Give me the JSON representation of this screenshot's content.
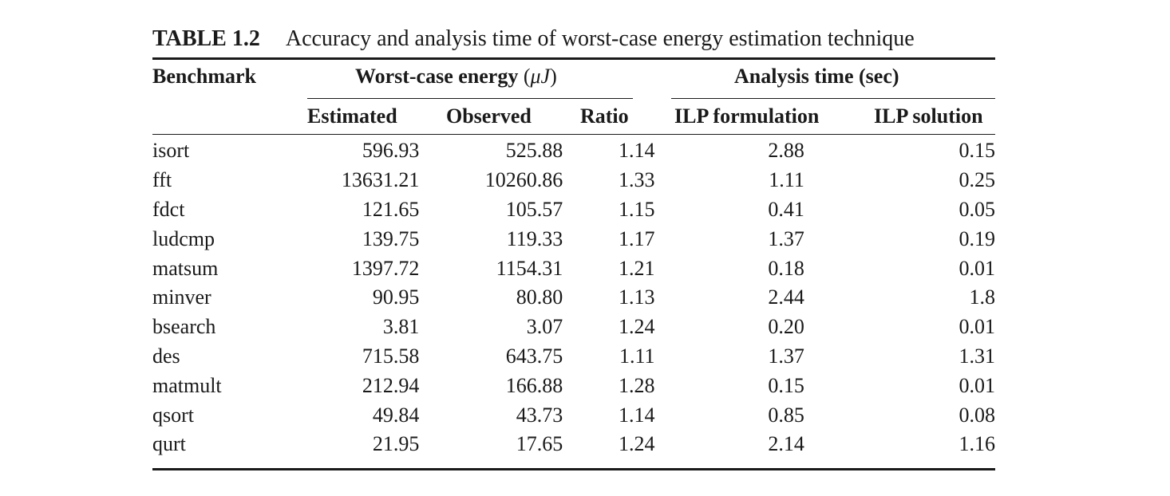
{
  "caption": {
    "label": "TABLE 1.2",
    "text": "Accuracy and analysis time of worst-case energy estimation technique"
  },
  "header": {
    "benchmark": "Benchmark",
    "energy_group": "Worst-case energy",
    "energy_unit_open": "(",
    "energy_unit": "μJ",
    "energy_unit_close": ")",
    "time_group": "Analysis time (sec)",
    "estimated": "Estimated",
    "observed": "Observed",
    "ratio": "Ratio",
    "ilp_formulation": "ILP formulation",
    "ilp_solution": "ILP solution"
  },
  "rows": [
    {
      "benchmark": "isort",
      "estimated": "596.93",
      "observed": "525.88",
      "ratio": "1.14",
      "ilp_formulation": "2.88",
      "ilp_solution": "0.15"
    },
    {
      "benchmark": "fft",
      "estimated": "13631.21",
      "observed": "10260.86",
      "ratio": "1.33",
      "ilp_formulation": "1.11",
      "ilp_solution": "0.25"
    },
    {
      "benchmark": "fdct",
      "estimated": "121.65",
      "observed": "105.57",
      "ratio": "1.15",
      "ilp_formulation": "0.41",
      "ilp_solution": "0.05"
    },
    {
      "benchmark": "ludcmp",
      "estimated": "139.75",
      "observed": "119.33",
      "ratio": "1.17",
      "ilp_formulation": "1.37",
      "ilp_solution": "0.19"
    },
    {
      "benchmark": "matsum",
      "estimated": "1397.72",
      "observed": "1154.31",
      "ratio": "1.21",
      "ilp_formulation": "0.18",
      "ilp_solution": "0.01"
    },
    {
      "benchmark": "minver",
      "estimated": "90.95",
      "observed": "80.80",
      "ratio": "1.13",
      "ilp_formulation": "2.44",
      "ilp_solution": "1.8"
    },
    {
      "benchmark": "bsearch",
      "estimated": "3.81",
      "observed": "3.07",
      "ratio": "1.24",
      "ilp_formulation": "0.20",
      "ilp_solution": "0.01"
    },
    {
      "benchmark": "des",
      "estimated": "715.58",
      "observed": "643.75",
      "ratio": "1.11",
      "ilp_formulation": "1.37",
      "ilp_solution": "1.31"
    },
    {
      "benchmark": "matmult",
      "estimated": "212.94",
      "observed": "166.88",
      "ratio": "1.28",
      "ilp_formulation": "0.15",
      "ilp_solution": "0.01"
    },
    {
      "benchmark": "qsort",
      "estimated": "49.84",
      "observed": "43.73",
      "ratio": "1.14",
      "ilp_formulation": "0.85",
      "ilp_solution": "0.08"
    },
    {
      "benchmark": "qurt",
      "estimated": "21.95",
      "observed": "17.65",
      "ratio": "1.24",
      "ilp_formulation": "2.14",
      "ilp_solution": "1.16"
    }
  ]
}
